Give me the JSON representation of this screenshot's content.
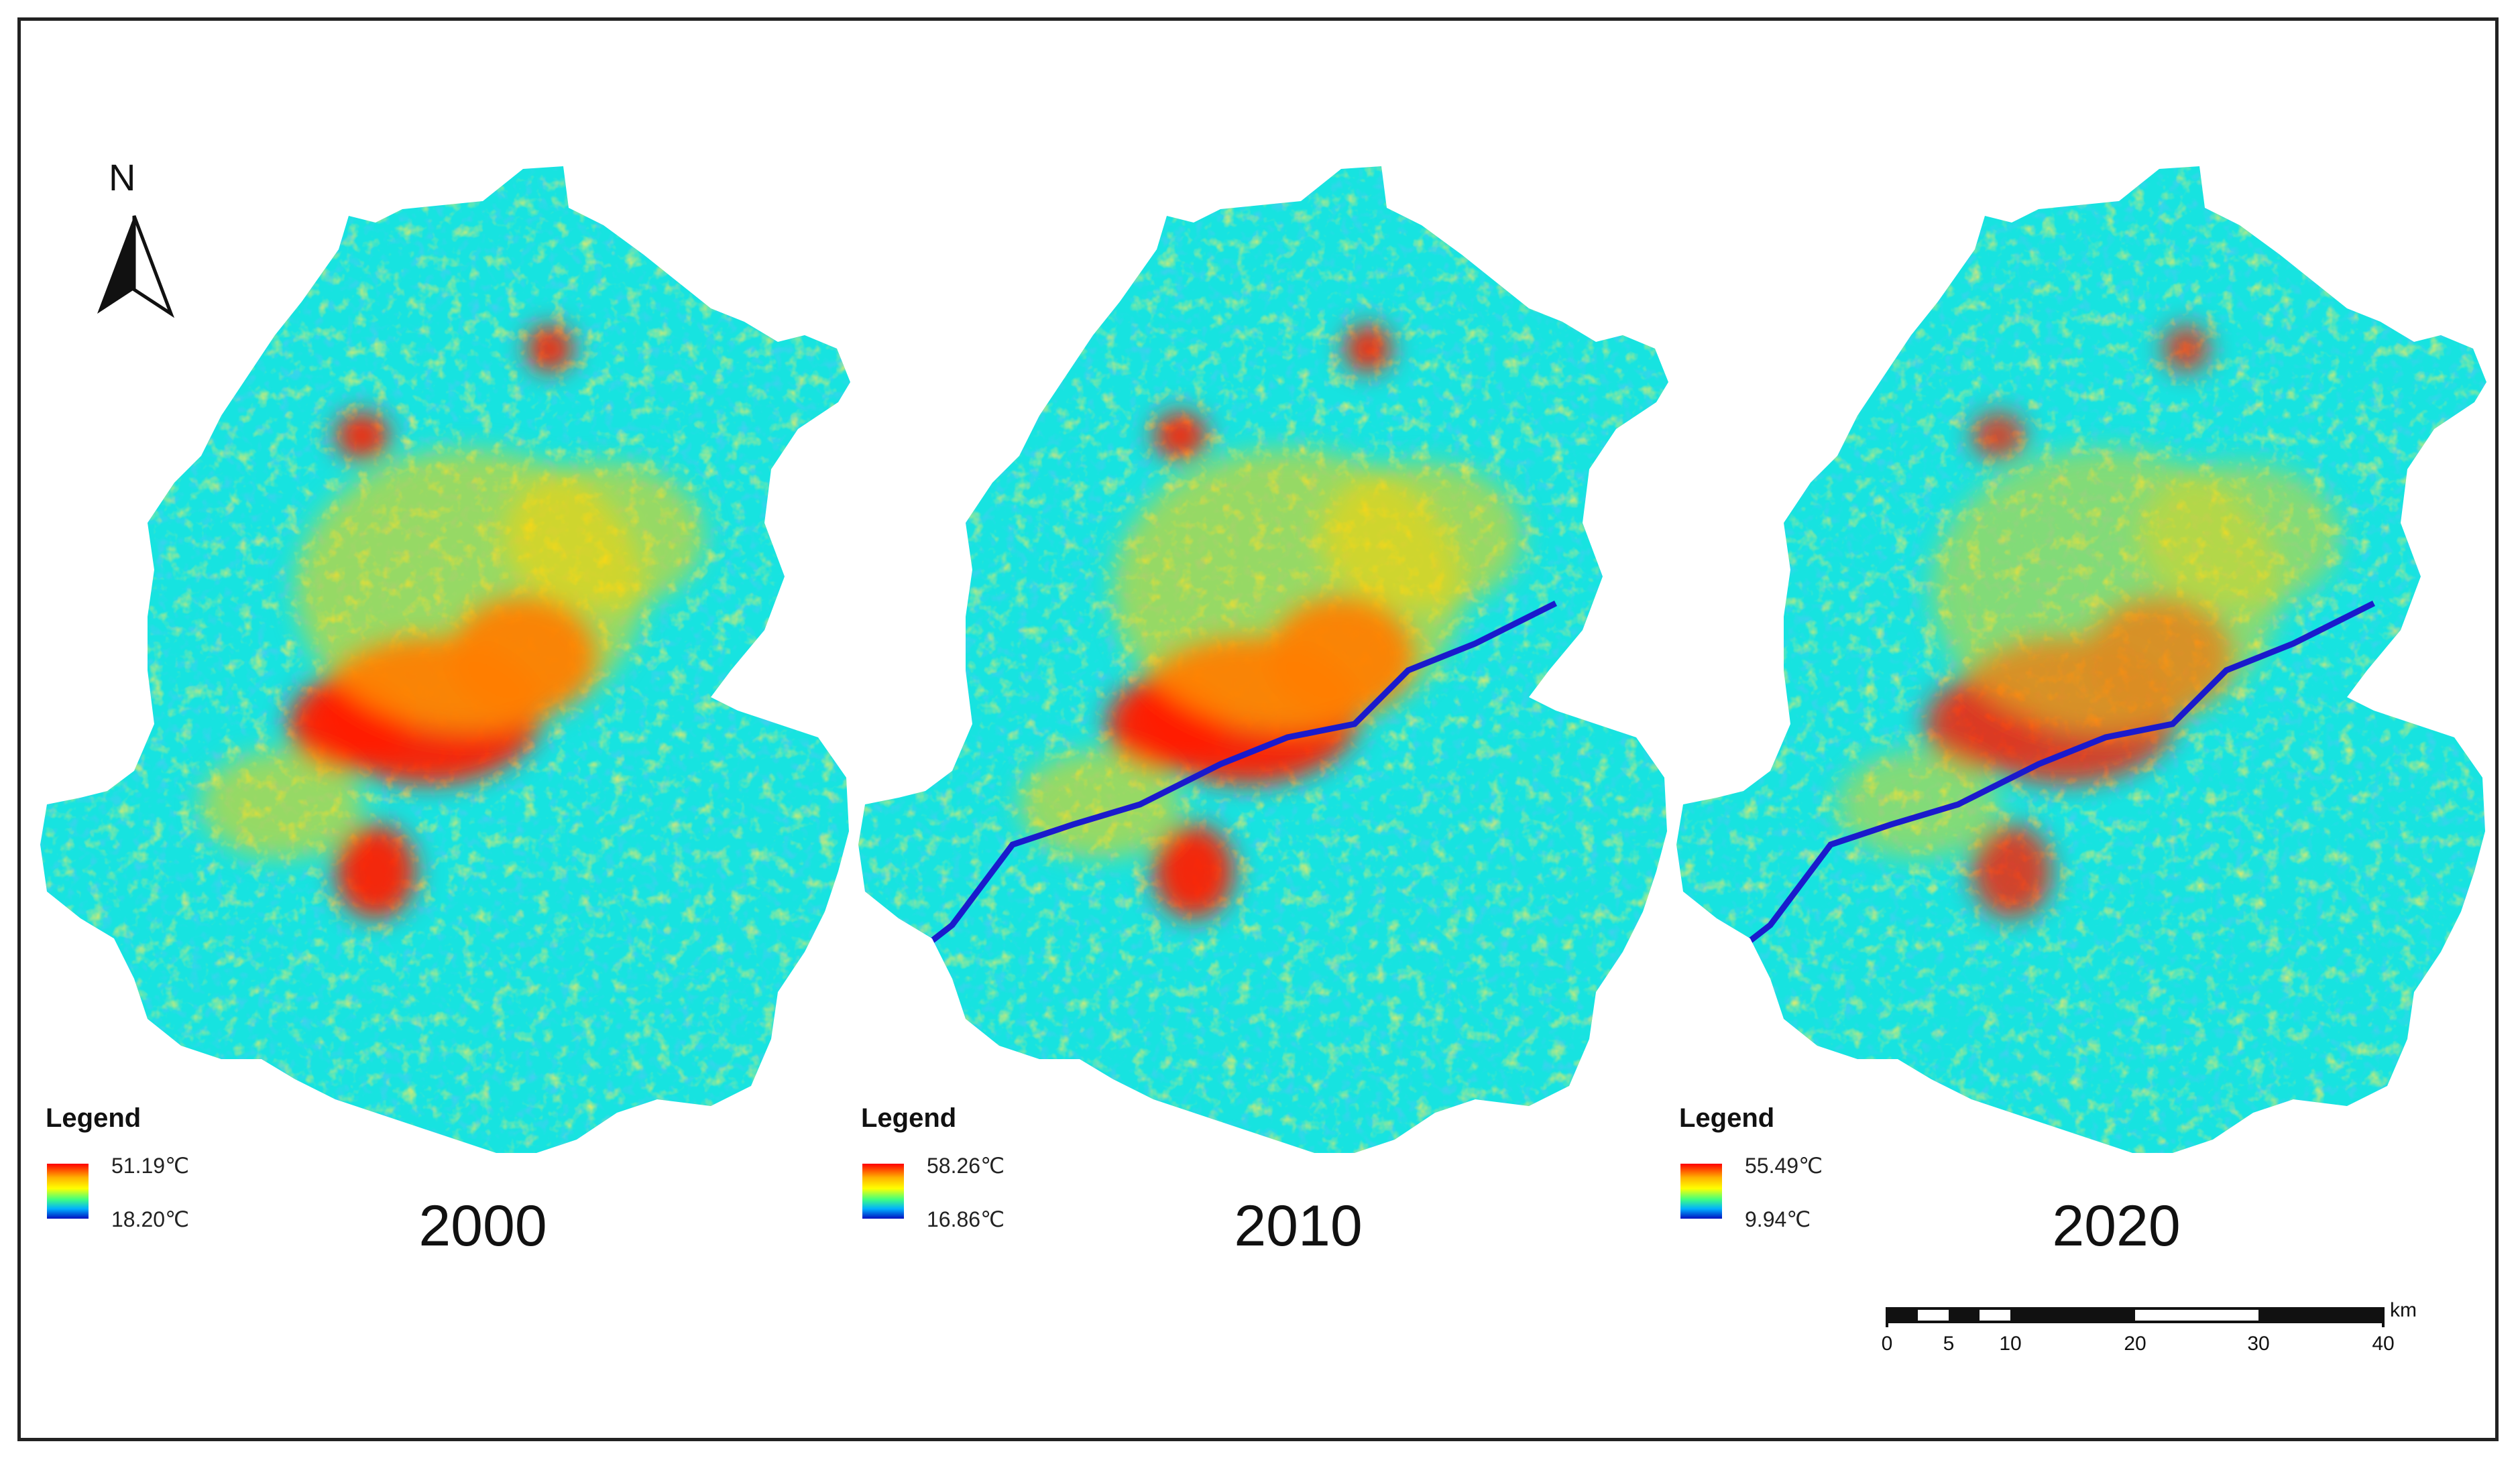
{
  "maps": [
    {
      "year": "2000",
      "legend": {
        "title": "Legend",
        "max": "51.19℃",
        "min": "18.20℃"
      },
      "urban_intensity": 1.0,
      "has_river": false
    },
    {
      "year": "2010",
      "legend": {
        "title": "Legend",
        "max": "58.26℃",
        "min": "16.86℃"
      },
      "urban_intensity": 1.0,
      "has_river": true
    },
    {
      "year": "2020",
      "legend": {
        "title": "Legend",
        "max": "55.49℃",
        "min": "9.94℃"
      },
      "urban_intensity": 0.85,
      "has_river": true
    }
  ],
  "north_arrow": {
    "label": "N"
  },
  "scale_bar": {
    "unit": "km",
    "ticks": [
      "0",
      "5",
      "10",
      "20",
      "30",
      "40"
    ]
  },
  "colors": {
    "hot": "#ff1a00",
    "warm": "#ffd200",
    "mild": "#9bff4a",
    "cool": "#17e3e0",
    "cold": "#1b9cf0",
    "coldest": "#1a1acc",
    "frame": "#222222"
  }
}
